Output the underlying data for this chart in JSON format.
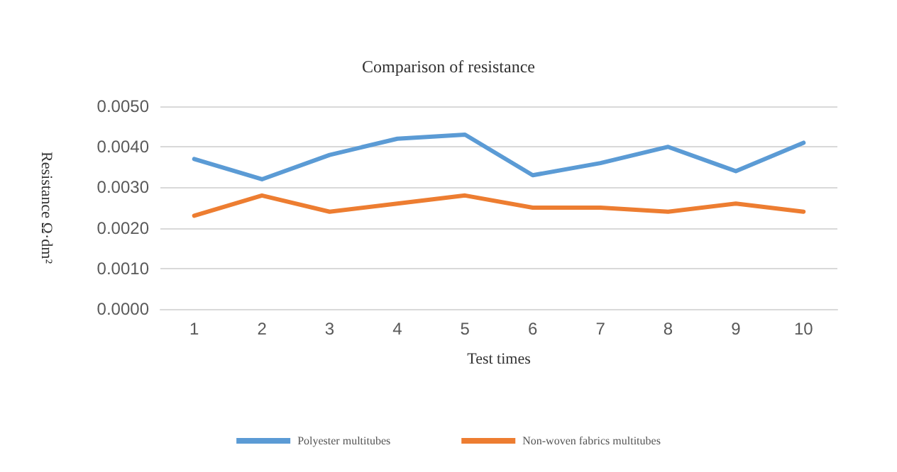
{
  "chart_data": {
    "type": "line",
    "title": "Comparison of resistance",
    "xlabel": "Test times",
    "ylabel": "Resistance Ω·dm²",
    "categories": [
      "1",
      "2",
      "3",
      "4",
      "5",
      "6",
      "7",
      "8",
      "9",
      "10"
    ],
    "series": [
      {
        "name": "Polyester multitubes",
        "color": "#5b9bd5",
        "values": [
          0.0037,
          0.0032,
          0.0038,
          0.0042,
          0.0043,
          0.0033,
          0.0036,
          0.004,
          0.0034,
          0.0041
        ]
      },
      {
        "name": "Non-woven fabrics multitubes",
        "color": "#ed7d31",
        "values": [
          0.0023,
          0.0028,
          0.0024,
          0.0026,
          0.0028,
          0.0025,
          0.0025,
          0.0024,
          0.0026,
          0.0024
        ]
      }
    ],
    "ylim": [
      0,
      0.005
    ],
    "yticks": [
      {
        "value": 0,
        "label": "0.0000"
      },
      {
        "value": 0.001,
        "label": "0.0010"
      },
      {
        "value": 0.002,
        "label": "0.0020"
      },
      {
        "value": 0.003,
        "label": "0.0030"
      },
      {
        "value": 0.004,
        "label": "0.0040"
      },
      {
        "value": 0.005,
        "label": "0.0050"
      }
    ],
    "grid": "y",
    "legend": "bottom",
    "marker": "none",
    "line_style": "solid"
  }
}
